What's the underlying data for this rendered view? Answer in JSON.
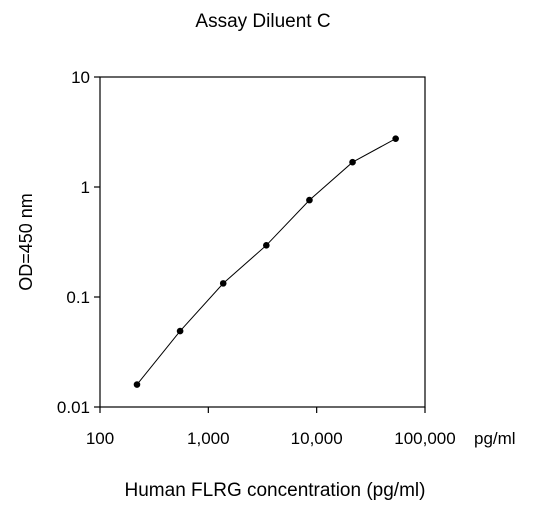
{
  "chart_data": {
    "type": "line",
    "title": "Assay Diluent C",
    "xlabel": "Human FLRG concentration (pg/ml)",
    "ylabel": "OD=450 nm",
    "x_unit_label": "pg/ml",
    "x_scale": "log",
    "y_scale": "log",
    "xlim": [
      100,
      100000
    ],
    "ylim": [
      0.01,
      10
    ],
    "x_ticks": [
      100,
      1000,
      10000,
      100000
    ],
    "x_tick_labels": [
      "100",
      "1,000",
      "10,000",
      "100,000"
    ],
    "y_ticks": [
      0.01,
      0.1,
      1,
      10
    ],
    "y_tick_labels": [
      "0.01",
      "0.1",
      "1",
      "10"
    ],
    "grid": false,
    "series": [
      {
        "x": [
          219.5,
          548.8,
          1372,
          3430,
          8575,
          21440,
          53600
        ],
        "y": [
          0.016,
          0.049,
          0.133,
          0.295,
          0.76,
          1.68,
          2.75
        ]
      }
    ],
    "marker_color": "#000000",
    "line_color": "#000000"
  }
}
